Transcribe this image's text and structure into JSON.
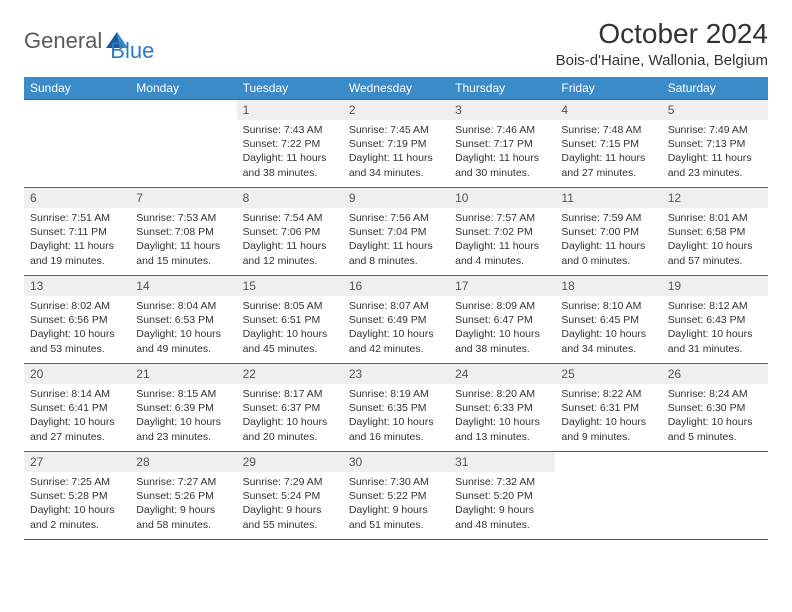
{
  "logo": {
    "part1": "General",
    "part2": "Blue"
  },
  "title": "October 2024",
  "location": "Bois-d'Haine, Wallonia, Belgium",
  "colors": {
    "header_bg": "#3b8bc9",
    "header_text": "#ffffff",
    "border": "#2b6aa0",
    "daynum_bg": "#efefef",
    "logo_gray": "#5a5a5a",
    "logo_blue": "#2d7bc0"
  },
  "weekdays": [
    "Sunday",
    "Monday",
    "Tuesday",
    "Wednesday",
    "Thursday",
    "Friday",
    "Saturday"
  ],
  "weeks": [
    [
      {
        "empty": true
      },
      {
        "empty": true
      },
      {
        "day": "1",
        "sunrise": "Sunrise: 7:43 AM",
        "sunset": "Sunset: 7:22 PM",
        "daylight": "Daylight: 11 hours and 38 minutes."
      },
      {
        "day": "2",
        "sunrise": "Sunrise: 7:45 AM",
        "sunset": "Sunset: 7:19 PM",
        "daylight": "Daylight: 11 hours and 34 minutes."
      },
      {
        "day": "3",
        "sunrise": "Sunrise: 7:46 AM",
        "sunset": "Sunset: 7:17 PM",
        "daylight": "Daylight: 11 hours and 30 minutes."
      },
      {
        "day": "4",
        "sunrise": "Sunrise: 7:48 AM",
        "sunset": "Sunset: 7:15 PM",
        "daylight": "Daylight: 11 hours and 27 minutes."
      },
      {
        "day": "5",
        "sunrise": "Sunrise: 7:49 AM",
        "sunset": "Sunset: 7:13 PM",
        "daylight": "Daylight: 11 hours and 23 minutes."
      }
    ],
    [
      {
        "day": "6",
        "sunrise": "Sunrise: 7:51 AM",
        "sunset": "Sunset: 7:11 PM",
        "daylight": "Daylight: 11 hours and 19 minutes."
      },
      {
        "day": "7",
        "sunrise": "Sunrise: 7:53 AM",
        "sunset": "Sunset: 7:08 PM",
        "daylight": "Daylight: 11 hours and 15 minutes."
      },
      {
        "day": "8",
        "sunrise": "Sunrise: 7:54 AM",
        "sunset": "Sunset: 7:06 PM",
        "daylight": "Daylight: 11 hours and 12 minutes."
      },
      {
        "day": "9",
        "sunrise": "Sunrise: 7:56 AM",
        "sunset": "Sunset: 7:04 PM",
        "daylight": "Daylight: 11 hours and 8 minutes."
      },
      {
        "day": "10",
        "sunrise": "Sunrise: 7:57 AM",
        "sunset": "Sunset: 7:02 PM",
        "daylight": "Daylight: 11 hours and 4 minutes."
      },
      {
        "day": "11",
        "sunrise": "Sunrise: 7:59 AM",
        "sunset": "Sunset: 7:00 PM",
        "daylight": "Daylight: 11 hours and 0 minutes."
      },
      {
        "day": "12",
        "sunrise": "Sunrise: 8:01 AM",
        "sunset": "Sunset: 6:58 PM",
        "daylight": "Daylight: 10 hours and 57 minutes."
      }
    ],
    [
      {
        "day": "13",
        "sunrise": "Sunrise: 8:02 AM",
        "sunset": "Sunset: 6:56 PM",
        "daylight": "Daylight: 10 hours and 53 minutes."
      },
      {
        "day": "14",
        "sunrise": "Sunrise: 8:04 AM",
        "sunset": "Sunset: 6:53 PM",
        "daylight": "Daylight: 10 hours and 49 minutes."
      },
      {
        "day": "15",
        "sunrise": "Sunrise: 8:05 AM",
        "sunset": "Sunset: 6:51 PM",
        "daylight": "Daylight: 10 hours and 45 minutes."
      },
      {
        "day": "16",
        "sunrise": "Sunrise: 8:07 AM",
        "sunset": "Sunset: 6:49 PM",
        "daylight": "Daylight: 10 hours and 42 minutes."
      },
      {
        "day": "17",
        "sunrise": "Sunrise: 8:09 AM",
        "sunset": "Sunset: 6:47 PM",
        "daylight": "Daylight: 10 hours and 38 minutes."
      },
      {
        "day": "18",
        "sunrise": "Sunrise: 8:10 AM",
        "sunset": "Sunset: 6:45 PM",
        "daylight": "Daylight: 10 hours and 34 minutes."
      },
      {
        "day": "19",
        "sunrise": "Sunrise: 8:12 AM",
        "sunset": "Sunset: 6:43 PM",
        "daylight": "Daylight: 10 hours and 31 minutes."
      }
    ],
    [
      {
        "day": "20",
        "sunrise": "Sunrise: 8:14 AM",
        "sunset": "Sunset: 6:41 PM",
        "daylight": "Daylight: 10 hours and 27 minutes."
      },
      {
        "day": "21",
        "sunrise": "Sunrise: 8:15 AM",
        "sunset": "Sunset: 6:39 PM",
        "daylight": "Daylight: 10 hours and 23 minutes."
      },
      {
        "day": "22",
        "sunrise": "Sunrise: 8:17 AM",
        "sunset": "Sunset: 6:37 PM",
        "daylight": "Daylight: 10 hours and 20 minutes."
      },
      {
        "day": "23",
        "sunrise": "Sunrise: 8:19 AM",
        "sunset": "Sunset: 6:35 PM",
        "daylight": "Daylight: 10 hours and 16 minutes."
      },
      {
        "day": "24",
        "sunrise": "Sunrise: 8:20 AM",
        "sunset": "Sunset: 6:33 PM",
        "daylight": "Daylight: 10 hours and 13 minutes."
      },
      {
        "day": "25",
        "sunrise": "Sunrise: 8:22 AM",
        "sunset": "Sunset: 6:31 PM",
        "daylight": "Daylight: 10 hours and 9 minutes."
      },
      {
        "day": "26",
        "sunrise": "Sunrise: 8:24 AM",
        "sunset": "Sunset: 6:30 PM",
        "daylight": "Daylight: 10 hours and 5 minutes."
      }
    ],
    [
      {
        "day": "27",
        "sunrise": "Sunrise: 7:25 AM",
        "sunset": "Sunset: 5:28 PM",
        "daylight": "Daylight: 10 hours and 2 minutes."
      },
      {
        "day": "28",
        "sunrise": "Sunrise: 7:27 AM",
        "sunset": "Sunset: 5:26 PM",
        "daylight": "Daylight: 9 hours and 58 minutes."
      },
      {
        "day": "29",
        "sunrise": "Sunrise: 7:29 AM",
        "sunset": "Sunset: 5:24 PM",
        "daylight": "Daylight: 9 hours and 55 minutes."
      },
      {
        "day": "30",
        "sunrise": "Sunrise: 7:30 AM",
        "sunset": "Sunset: 5:22 PM",
        "daylight": "Daylight: 9 hours and 51 minutes."
      },
      {
        "day": "31",
        "sunrise": "Sunrise: 7:32 AM",
        "sunset": "Sunset: 5:20 PM",
        "daylight": "Daylight: 9 hours and 48 minutes."
      },
      {
        "empty": true
      },
      {
        "empty": true
      }
    ]
  ]
}
